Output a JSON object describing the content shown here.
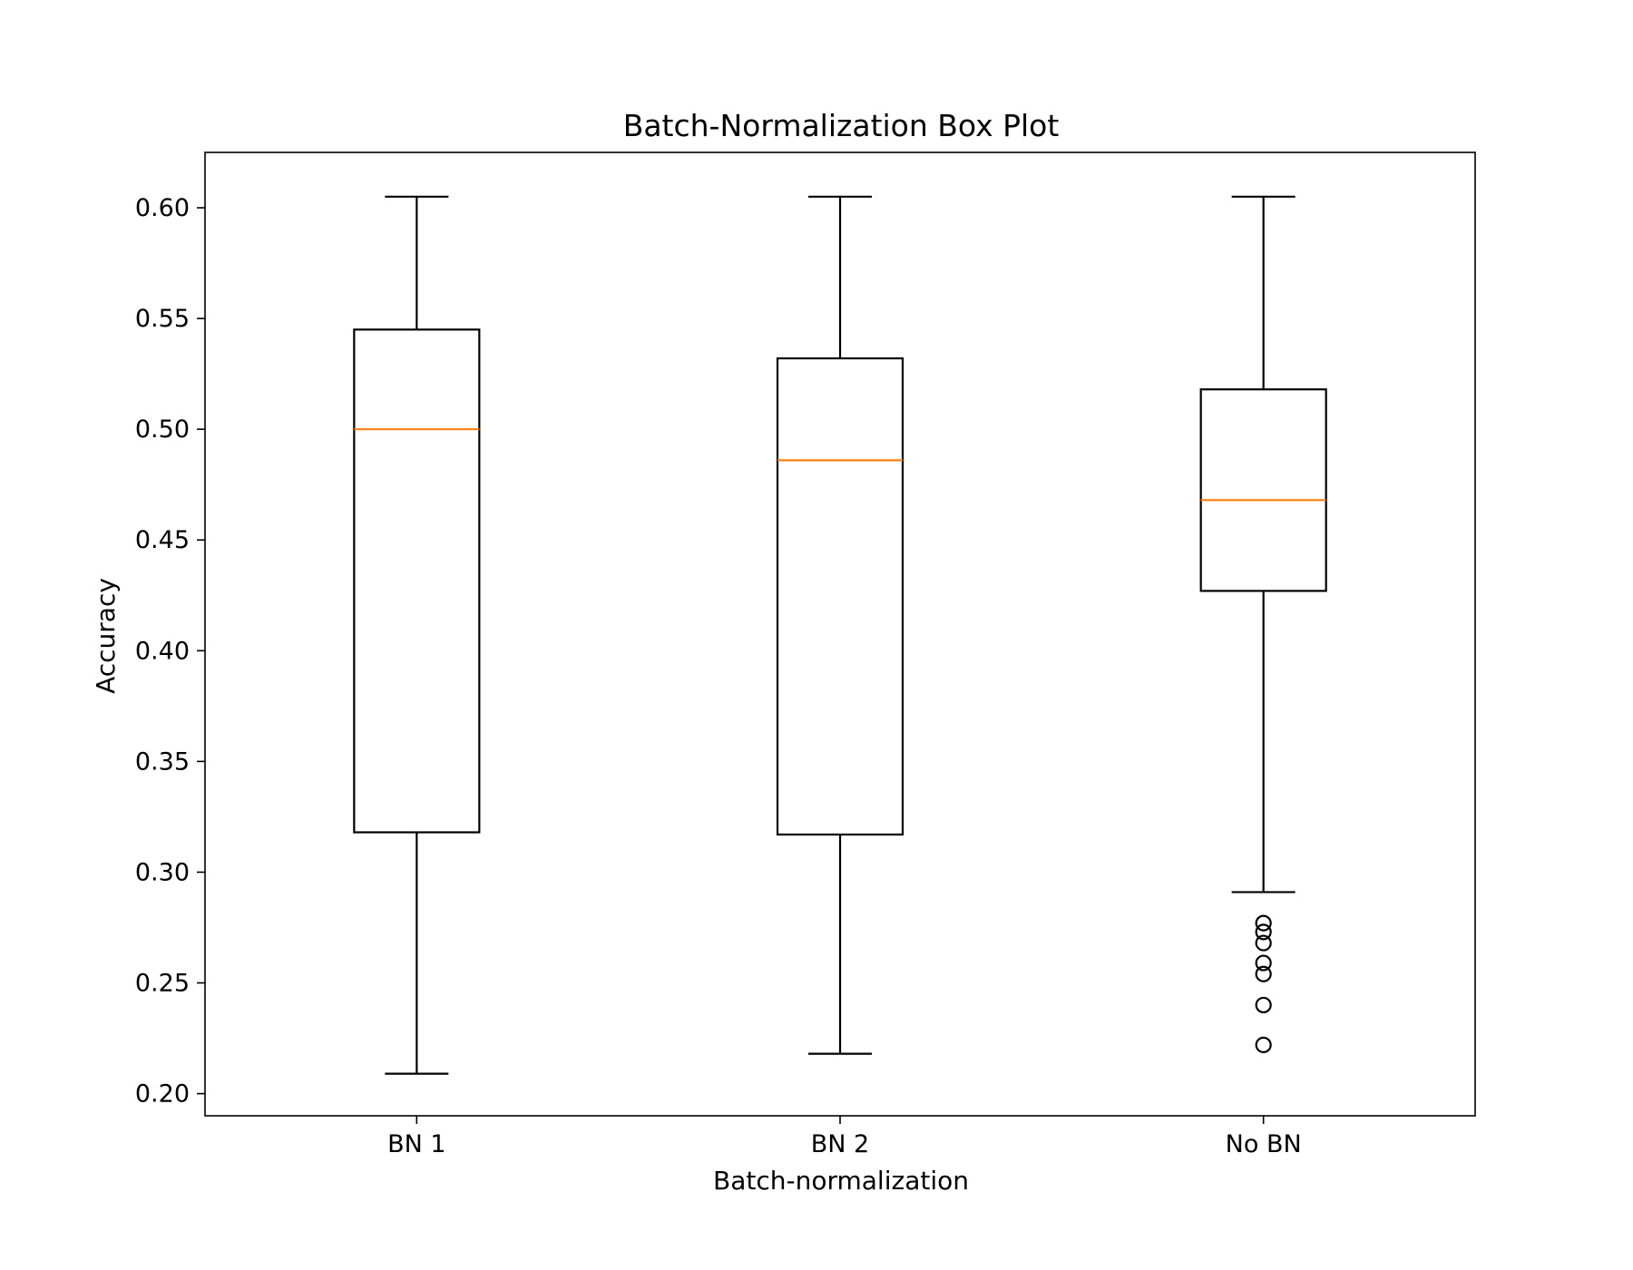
{
  "chart_data": {
    "type": "box",
    "title": "Batch-Normalization Box Plot",
    "xlabel": "Batch-normalization",
    "ylabel": "Accuracy",
    "ylim": [
      0.19,
      0.625
    ],
    "yticks": [
      "0.20",
      "0.25",
      "0.30",
      "0.35",
      "0.40",
      "0.45",
      "0.50",
      "0.55",
      "0.60"
    ],
    "grid": false,
    "colors": {
      "box": "#000000",
      "median": "#ff7f0e",
      "flier": "#000000"
    },
    "categories": [
      "BN 1",
      "BN 2",
      "No BN"
    ],
    "boxes": [
      {
        "label": "BN 1",
        "whisker_low": 0.209,
        "q1": 0.318,
        "median": 0.5,
        "q3": 0.545,
        "whisker_high": 0.605,
        "fliers": []
      },
      {
        "label": "BN 2",
        "whisker_low": 0.218,
        "q1": 0.317,
        "median": 0.486,
        "q3": 0.532,
        "whisker_high": 0.605,
        "fliers": []
      },
      {
        "label": "No BN",
        "whisker_low": 0.291,
        "q1": 0.427,
        "median": 0.468,
        "q3": 0.518,
        "whisker_high": 0.605,
        "fliers": [
          0.277,
          0.273,
          0.268,
          0.259,
          0.254,
          0.24,
          0.222
        ]
      }
    ]
  }
}
